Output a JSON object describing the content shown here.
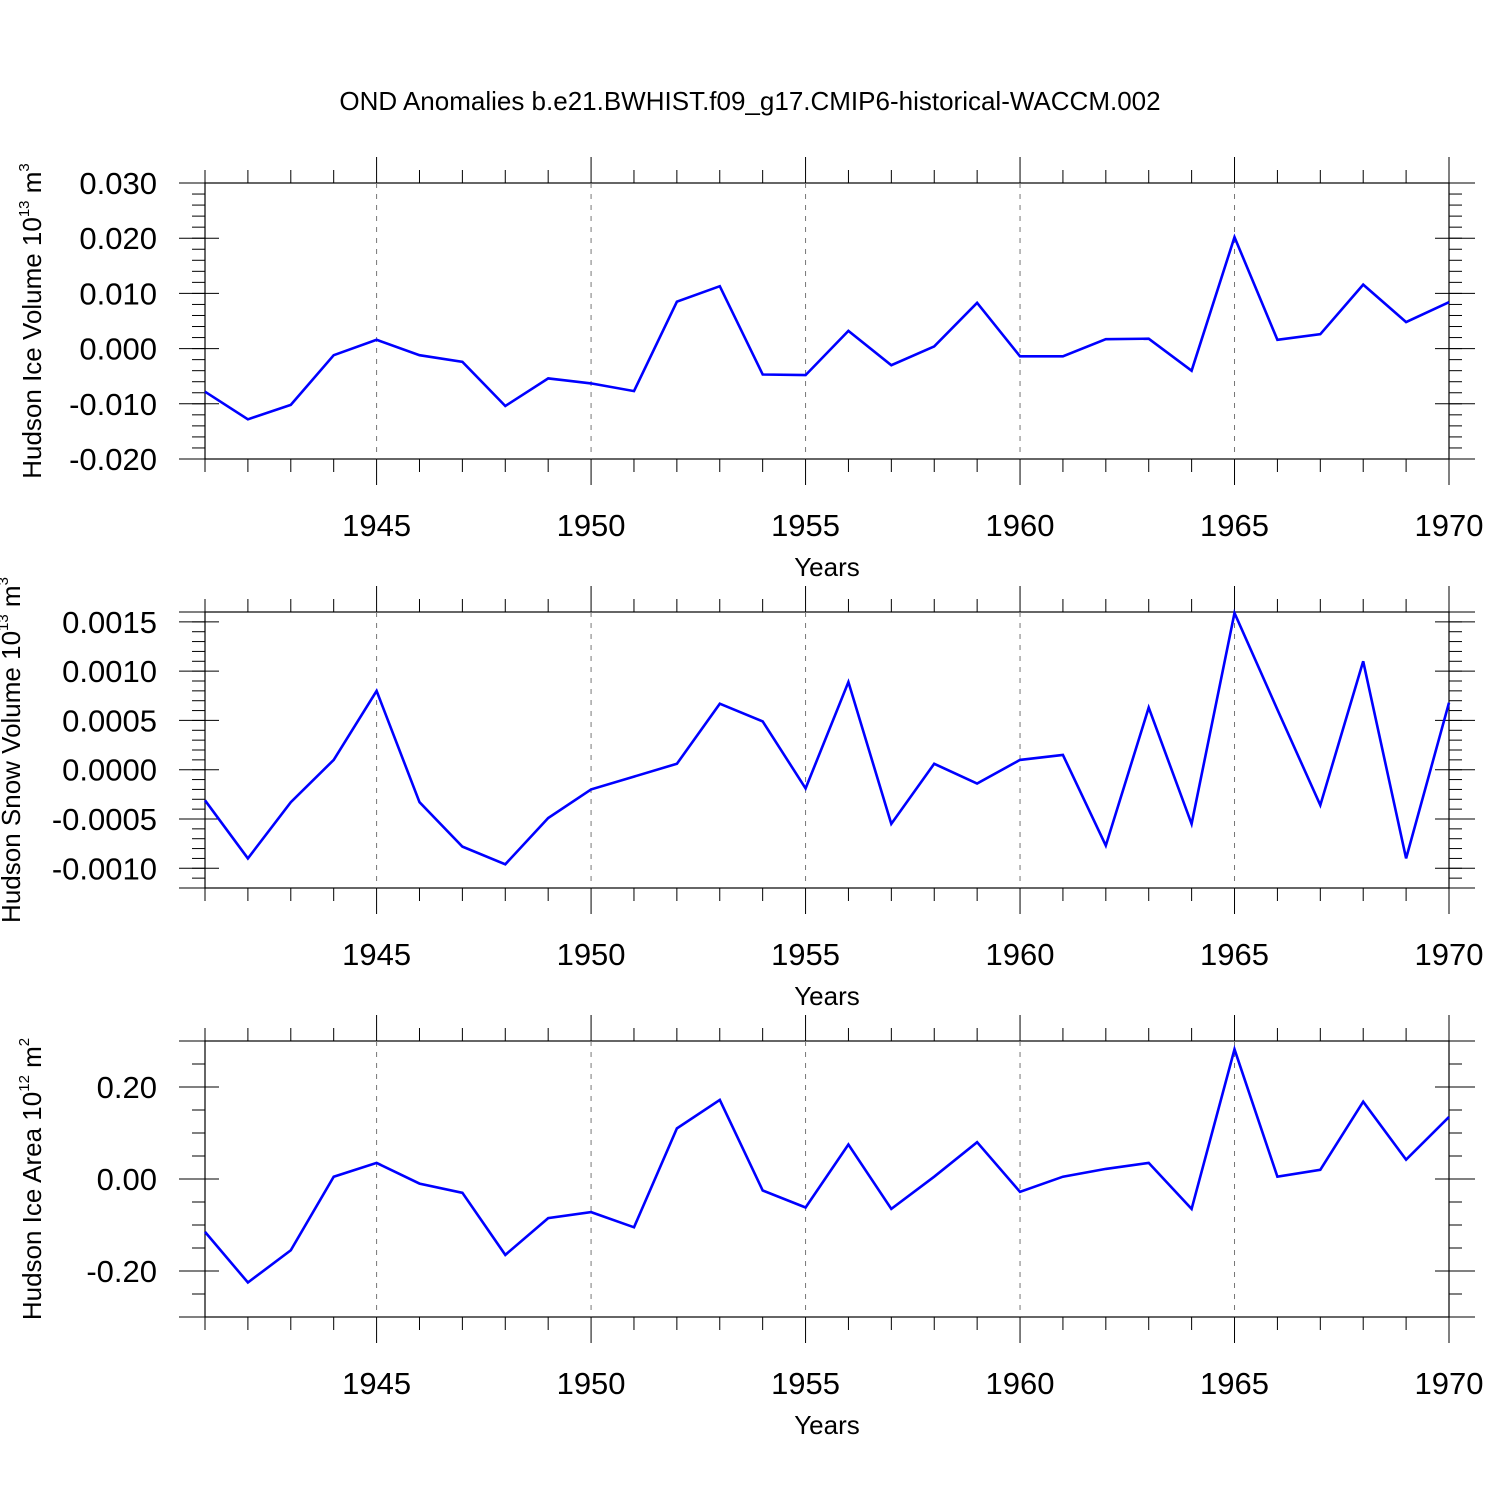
{
  "figure": {
    "title": "OND Anomalies b.e21.BWHIST.f09_g17.CMIP6-historical-WACCM.002"
  },
  "colors": {
    "line": "#0000ff",
    "axis": "#000000",
    "grid": "#777777"
  },
  "chart_data": [
    {
      "type": "line",
      "title": "",
      "xlabel": "Years",
      "ylabel_text": "Hudson Ice Volume 10",
      "ylabel_exp": "13",
      "ylabel_unit": " m",
      "ylabel_unit_exp": "3",
      "xlim": [
        1941,
        1970
      ],
      "ylim": [
        -0.02,
        0.03
      ],
      "x_ticks": [
        1945,
        1950,
        1955,
        1960,
        1965,
        1970
      ],
      "x_tick_labels": [
        "1945",
        "1950",
        "1955",
        "1960",
        "1965",
        "1970"
      ],
      "y_ticks": [
        -0.02,
        -0.01,
        0.0,
        0.01,
        0.02,
        0.03
      ],
      "y_tick_labels": [
        "-0.020",
        "-0.010",
        "0.000",
        "0.010",
        "0.020",
        "0.030"
      ],
      "y_minor_step": 0.002,
      "grid_x": true,
      "series": [
        {
          "name": "Hudson Ice Volume",
          "x": [
            1941,
            1942,
            1943,
            1944,
            1945,
            1946,
            1947,
            1948,
            1949,
            1950,
            1951,
            1952,
            1953,
            1954,
            1955,
            1956,
            1957,
            1958,
            1959,
            1960,
            1961,
            1962,
            1963,
            1964,
            1965,
            1966,
            1967,
            1968,
            1969,
            1970
          ],
          "values": [
            -0.0078,
            -0.0128,
            -0.0102,
            -0.0012,
            0.0016,
            -0.0012,
            -0.0024,
            -0.0104,
            -0.0054,
            -0.0063,
            -0.0077,
            0.0085,
            0.0113,
            -0.0047,
            -0.0048,
            0.0032,
            -0.003,
            0.0004,
            0.0083,
            -0.0014,
            -0.0014,
            0.0017,
            0.0018,
            -0.004,
            0.0202,
            0.0016,
            0.0026,
            0.0116,
            0.0048,
            0.0084
          ]
        }
      ]
    },
    {
      "type": "line",
      "title": "",
      "xlabel": "Years",
      "ylabel_text": "Hudson Snow Volume 10",
      "ylabel_exp": "13",
      "ylabel_unit": " m",
      "ylabel_unit_exp": "3",
      "xlim": [
        1941,
        1970
      ],
      "ylim": [
        -0.0012,
        0.0016
      ],
      "x_ticks": [
        1945,
        1950,
        1955,
        1960,
        1965,
        1970
      ],
      "x_tick_labels": [
        "1945",
        "1950",
        "1955",
        "1960",
        "1965",
        "1970"
      ],
      "y_ticks": [
        -0.001,
        -0.0005,
        0.0,
        0.0005,
        0.001,
        0.0015
      ],
      "y_tick_labels": [
        "-0.0010",
        "-0.0005",
        "0.0000",
        "0.0005",
        "0.0010",
        "0.0015"
      ],
      "y_minor_step": 0.0001,
      "grid_x": true,
      "series": [
        {
          "name": "Hudson Snow Volume",
          "x": [
            1941,
            1942,
            1943,
            1944,
            1945,
            1946,
            1947,
            1948,
            1949,
            1950,
            1951,
            1952,
            1953,
            1954,
            1955,
            1956,
            1957,
            1958,
            1959,
            1960,
            1961,
            1962,
            1963,
            1964,
            1965,
            1966,
            1967,
            1968,
            1969,
            1970
          ],
          "values": [
            -0.00031,
            -0.0009,
            -0.00033,
            0.0001,
            0.0008,
            -0.00033,
            -0.00078,
            -0.00096,
            -0.00049,
            -0.0002,
            -7e-05,
            6e-05,
            0.00067,
            0.00049,
            -0.00019,
            0.00089,
            -0.00055,
            6e-05,
            -0.00014,
            0.0001,
            0.00015,
            -0.00077,
            0.00063,
            -0.00055,
            0.00159,
            0.00061,
            -0.00036,
            0.0011,
            -0.0009,
            0.00068
          ]
        }
      ]
    },
    {
      "type": "line",
      "title": "",
      "xlabel": "Years",
      "ylabel_text": "Hudson Ice Area 10",
      "ylabel_exp": "12",
      "ylabel_unit": " m",
      "ylabel_unit_exp": "2",
      "xlim": [
        1941,
        1970
      ],
      "ylim": [
        -0.3,
        0.3
      ],
      "x_ticks": [
        1945,
        1950,
        1955,
        1960,
        1965,
        1970
      ],
      "x_tick_labels": [
        "1945",
        "1950",
        "1955",
        "1960",
        "1965",
        "1970"
      ],
      "y_ticks": [
        -0.2,
        0.0,
        0.2
      ],
      "y_tick_labels": [
        "-0.20",
        "0.00",
        "0.20"
      ],
      "y_minor_step": 0.05,
      "grid_x": true,
      "series": [
        {
          "name": "Hudson Ice Area",
          "x": [
            1941,
            1942,
            1943,
            1944,
            1945,
            1946,
            1947,
            1948,
            1949,
            1950,
            1951,
            1952,
            1953,
            1954,
            1955,
            1956,
            1957,
            1958,
            1959,
            1960,
            1961,
            1962,
            1963,
            1964,
            1965,
            1966,
            1967,
            1968,
            1969,
            1970
          ],
          "values": [
            -0.115,
            -0.225,
            -0.155,
            0.005,
            0.035,
            -0.01,
            -0.03,
            -0.165,
            -0.085,
            -0.072,
            -0.105,
            0.11,
            0.172,
            -0.025,
            -0.062,
            0.075,
            -0.065,
            0.005,
            0.08,
            -0.028,
            0.005,
            0.022,
            0.035,
            -0.065,
            0.282,
            0.005,
            0.02,
            0.168,
            0.042,
            0.135
          ]
        }
      ]
    }
  ]
}
